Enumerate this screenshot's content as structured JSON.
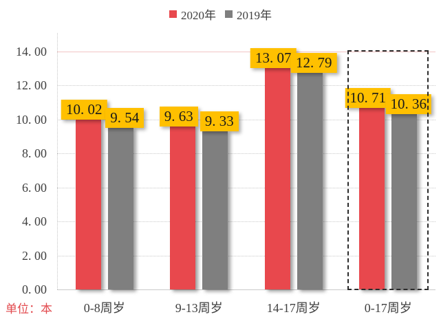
{
  "unit_label": "单位：本",
  "colors": {
    "series_2020": "#e8484d",
    "series_2019": "#7f7f7f",
    "value_label_bg": "#ffc000",
    "value_label_text": "#1a1a1a",
    "axis_text": "#404040",
    "unit_text": "#e2494d",
    "gridline": "#c9c9c9",
    "top_gridline": "#f2c4c4",
    "highlight_border": "#2b2b2b"
  },
  "chart_data": {
    "type": "bar",
    "title": "",
    "xlabel": "",
    "ylabel": "",
    "unit": "本",
    "categories": [
      "0-8周岁",
      "9-13周岁",
      "14-17周岁",
      "0-17周岁"
    ],
    "series": [
      {
        "name": "2020年",
        "color": "#e8484d",
        "values": [
          10.02,
          9.63,
          13.07,
          10.71
        ],
        "value_labels": [
          "10. 02",
          "9. 63",
          "13. 07",
          "10. 71"
        ]
      },
      {
        "name": "2019年",
        "color": "#7f7f7f",
        "values": [
          9.54,
          9.33,
          12.79,
          10.36
        ],
        "value_labels": [
          "9. 54",
          "9. 33",
          "12. 79",
          "10. 36"
        ]
      }
    ],
    "ylim": [
      0,
      14
    ],
    "ytick_step": 2,
    "ytick_labels": [
      "0. 00",
      "2. 00",
      "4. 00",
      "6. 00",
      "8. 00",
      "10. 00",
      "12. 00",
      "14. 00"
    ],
    "grid": true,
    "legend_position": "top",
    "value_labels_shown": true,
    "value_label_bg": "#ffc000",
    "highlighted_category_index": 3
  }
}
